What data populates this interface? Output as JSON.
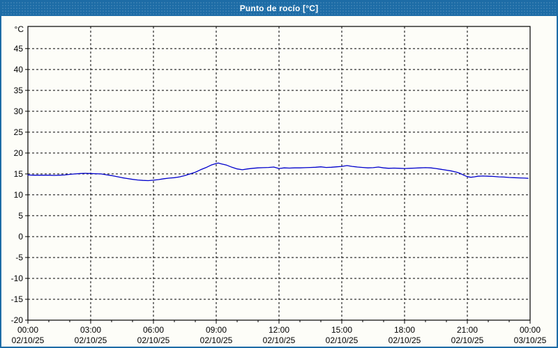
{
  "window": {
    "title": "Punto de rocío [°C]"
  },
  "colors": {
    "frame": "#1d6ca6",
    "titlebar": "#1d6ca6",
    "title_text": "#ffffff",
    "page_bg": "#fdfdf8",
    "plot_bg": "#fdfdf8",
    "grid": "#000000",
    "axis": "#000000",
    "label": "#000000",
    "line": "#0000cc"
  },
  "chart_data": {
    "type": "line",
    "title": "Punto de rocío [°C]",
    "unit_label": "°C",
    "grid": "dashed",
    "legend_position": "none",
    "ylim": [
      -20,
      50.3
    ],
    "ytick_step": 5,
    "yticks": [
      45,
      40,
      35,
      30,
      25,
      20,
      15,
      10,
      5,
      0,
      -5,
      -10,
      -15,
      -20
    ],
    "x_hours_range": [
      0,
      24
    ],
    "x_minor_step_hours": 1,
    "x_major_ticks": [
      {
        "hour": 0,
        "time": "00:00",
        "date": "02/10/25"
      },
      {
        "hour": 3,
        "time": "03:00",
        "date": "02/10/25"
      },
      {
        "hour": 6,
        "time": "06:00",
        "date": "02/10/25"
      },
      {
        "hour": 9,
        "time": "09:00",
        "date": "02/10/25"
      },
      {
        "hour": 12,
        "time": "12:00",
        "date": "02/10/25"
      },
      {
        "hour": 15,
        "time": "15:00",
        "date": "02/10/25"
      },
      {
        "hour": 18,
        "time": "18:00",
        "date": "02/10/25"
      },
      {
        "hour": 21,
        "time": "21:00",
        "date": "02/10/25"
      },
      {
        "hour": 24,
        "time": "00:00",
        "date": "03/10/25"
      }
    ],
    "series": [
      {
        "name": "Punto de rocío",
        "color": "#0000cc",
        "points": [
          [
            0.0,
            14.75
          ],
          [
            0.25,
            14.7
          ],
          [
            0.5,
            14.7
          ],
          [
            0.75,
            14.7
          ],
          [
            1.0,
            14.7
          ],
          [
            1.25,
            14.65
          ],
          [
            1.5,
            14.7
          ],
          [
            1.75,
            14.75
          ],
          [
            2.0,
            14.9
          ],
          [
            2.25,
            15.0
          ],
          [
            2.5,
            15.1
          ],
          [
            2.75,
            15.15
          ],
          [
            3.0,
            15.1
          ],
          [
            3.25,
            15.05
          ],
          [
            3.5,
            15.0
          ],
          [
            3.75,
            14.8
          ],
          [
            4.0,
            14.6
          ],
          [
            4.25,
            14.35
          ],
          [
            4.5,
            14.1
          ],
          [
            4.75,
            13.9
          ],
          [
            5.0,
            13.7
          ],
          [
            5.25,
            13.55
          ],
          [
            5.5,
            13.45
          ],
          [
            5.75,
            13.4
          ],
          [
            6.0,
            13.5
          ],
          [
            6.25,
            13.65
          ],
          [
            6.5,
            13.85
          ],
          [
            6.75,
            14.0
          ],
          [
            7.0,
            14.1
          ],
          [
            7.25,
            14.3
          ],
          [
            7.5,
            14.6
          ],
          [
            7.75,
            15.0
          ],
          [
            8.0,
            15.4
          ],
          [
            8.25,
            16.0
          ],
          [
            8.5,
            16.5
          ],
          [
            8.75,
            17.1
          ],
          [
            9.0,
            17.5
          ],
          [
            9.1,
            17.6
          ],
          [
            9.25,
            17.4
          ],
          [
            9.5,
            17.1
          ],
          [
            9.75,
            16.6
          ],
          [
            10.0,
            16.2
          ],
          [
            10.25,
            16.0
          ],
          [
            10.5,
            16.2
          ],
          [
            10.75,
            16.35
          ],
          [
            11.0,
            16.45
          ],
          [
            11.25,
            16.5
          ],
          [
            11.5,
            16.55
          ],
          [
            11.75,
            16.65
          ],
          [
            12.0,
            16.3
          ],
          [
            12.25,
            16.45
          ],
          [
            12.5,
            16.4
          ],
          [
            12.75,
            16.45
          ],
          [
            13.0,
            16.45
          ],
          [
            13.25,
            16.5
          ],
          [
            13.5,
            16.55
          ],
          [
            13.75,
            16.6
          ],
          [
            14.0,
            16.7
          ],
          [
            14.25,
            16.55
          ],
          [
            14.5,
            16.6
          ],
          [
            14.75,
            16.7
          ],
          [
            15.0,
            16.8
          ],
          [
            15.25,
            17.0
          ],
          [
            15.5,
            16.8
          ],
          [
            15.75,
            16.65
          ],
          [
            16.0,
            16.55
          ],
          [
            16.25,
            16.45
          ],
          [
            16.5,
            16.5
          ],
          [
            16.75,
            16.65
          ],
          [
            17.0,
            16.45
          ],
          [
            17.25,
            16.35
          ],
          [
            17.5,
            16.4
          ],
          [
            17.75,
            16.35
          ],
          [
            18.0,
            16.3
          ],
          [
            18.25,
            16.35
          ],
          [
            18.5,
            16.4
          ],
          [
            18.75,
            16.45
          ],
          [
            19.0,
            16.5
          ],
          [
            19.25,
            16.45
          ],
          [
            19.5,
            16.3
          ],
          [
            19.75,
            16.1
          ],
          [
            20.0,
            15.9
          ],
          [
            20.25,
            15.7
          ],
          [
            20.5,
            15.4
          ],
          [
            20.67,
            15.1
          ],
          [
            20.83,
            14.7
          ],
          [
            21.0,
            14.35
          ],
          [
            21.17,
            14.2
          ],
          [
            21.33,
            14.3
          ],
          [
            21.5,
            14.45
          ],
          [
            21.75,
            14.5
          ],
          [
            22.0,
            14.45
          ],
          [
            22.25,
            14.4
          ],
          [
            22.5,
            14.3
          ],
          [
            22.75,
            14.25
          ],
          [
            23.0,
            14.15
          ],
          [
            23.25,
            14.1
          ],
          [
            23.5,
            14.05
          ],
          [
            23.75,
            14.0
          ],
          [
            23.9,
            13.95
          ]
        ]
      }
    ]
  }
}
